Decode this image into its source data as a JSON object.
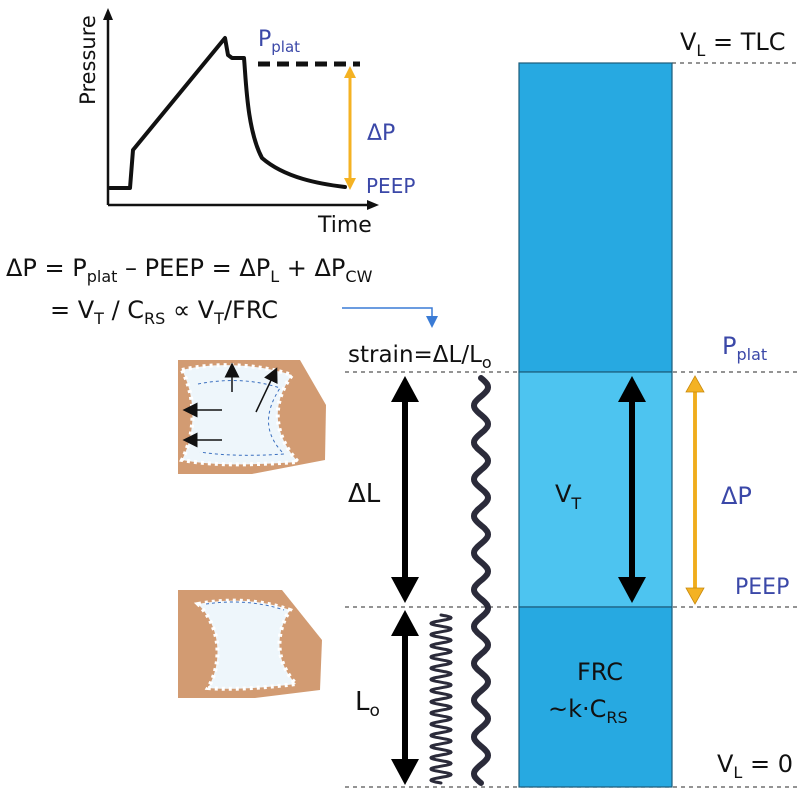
{
  "pressure_curve": {
    "y_axis_label": "Pressure",
    "x_axis_label": "Time",
    "p_plat_main": "P",
    "p_plat_sub": "plat",
    "delta_p": "ΔP",
    "peep": "PEEP"
  },
  "equation": {
    "line1": {
      "a": "ΔP = P",
      "a_sub": "plat",
      "b": " – PEEP = ΔP",
      "b_sub": "L",
      "c": " + ΔP",
      "c_sub": "CW"
    },
    "line2": {
      "a": "= V",
      "a_sub": "T",
      "b": " / C",
      "b_sub": "RS",
      "c": " ∝ V",
      "c_sub": "T",
      "d": "/FRC"
    }
  },
  "strain": {
    "text": "strain=ΔL/L",
    "sub": "o"
  },
  "delta_l": "ΔL",
  "l_o": {
    "main": "L",
    "sub": "o"
  },
  "volume_column": {
    "tlc": {
      "main": "V",
      "sub": "L",
      "rest": " = TLC"
    },
    "zero": {
      "main": "V",
      "sub": "L",
      "rest": " = 0"
    },
    "vt": {
      "main": "V",
      "sub": "T"
    },
    "frc_line1": "FRC",
    "frc_line2": {
      "main": "~k·C",
      "sub": "RS"
    }
  },
  "right_labels": {
    "p_plat_main": "P",
    "p_plat_sub": "plat",
    "delta_p": "ΔP",
    "peep": "PEEP"
  },
  "colors": {
    "column_top": "#27a9e1",
    "column_mid": "#4dc4f0",
    "column_bottom": "#27a9e1",
    "accent_orange": "#f4b223",
    "label_blue": "#3b48a8",
    "tissue": "#d29b72",
    "alveolus": "#eef6fb",
    "spring": "#2b2b3a"
  }
}
